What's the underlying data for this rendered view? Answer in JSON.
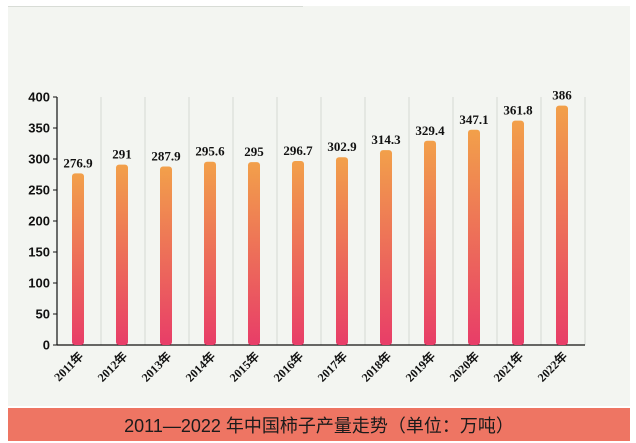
{
  "chart_data": {
    "type": "bar",
    "title": "2011—2022 年中国柿子产量走势（单位：万吨）",
    "categories": [
      "2011年",
      "2012年",
      "2013年",
      "2014年",
      "2015年",
      "2016年",
      "2017年",
      "2018年",
      "2019年",
      "2020年",
      "2021年",
      "2022年"
    ],
    "values": [
      276.9,
      291,
      287.9,
      295.6,
      295,
      296.7,
      302.9,
      314.3,
      329.4,
      347.1,
      361.8,
      386
    ],
    "value_labels": [
      "276.9",
      "291",
      "287.9",
      "295.6",
      "295",
      "296.7",
      "302.9",
      "314.3",
      "329.4",
      "347.1",
      "361.8",
      "386"
    ],
    "ylim": [
      0,
      400
    ],
    "yticks": [
      0,
      50,
      100,
      150,
      200,
      250,
      300,
      350,
      400
    ],
    "xlabel": "",
    "ylabel": "",
    "grid": "vertical",
    "colors": {
      "bar_top": "#f2a04a",
      "bar_bottom": "#e83d68",
      "footer": "#ee7563",
      "panel": "#f3f5f1"
    }
  }
}
